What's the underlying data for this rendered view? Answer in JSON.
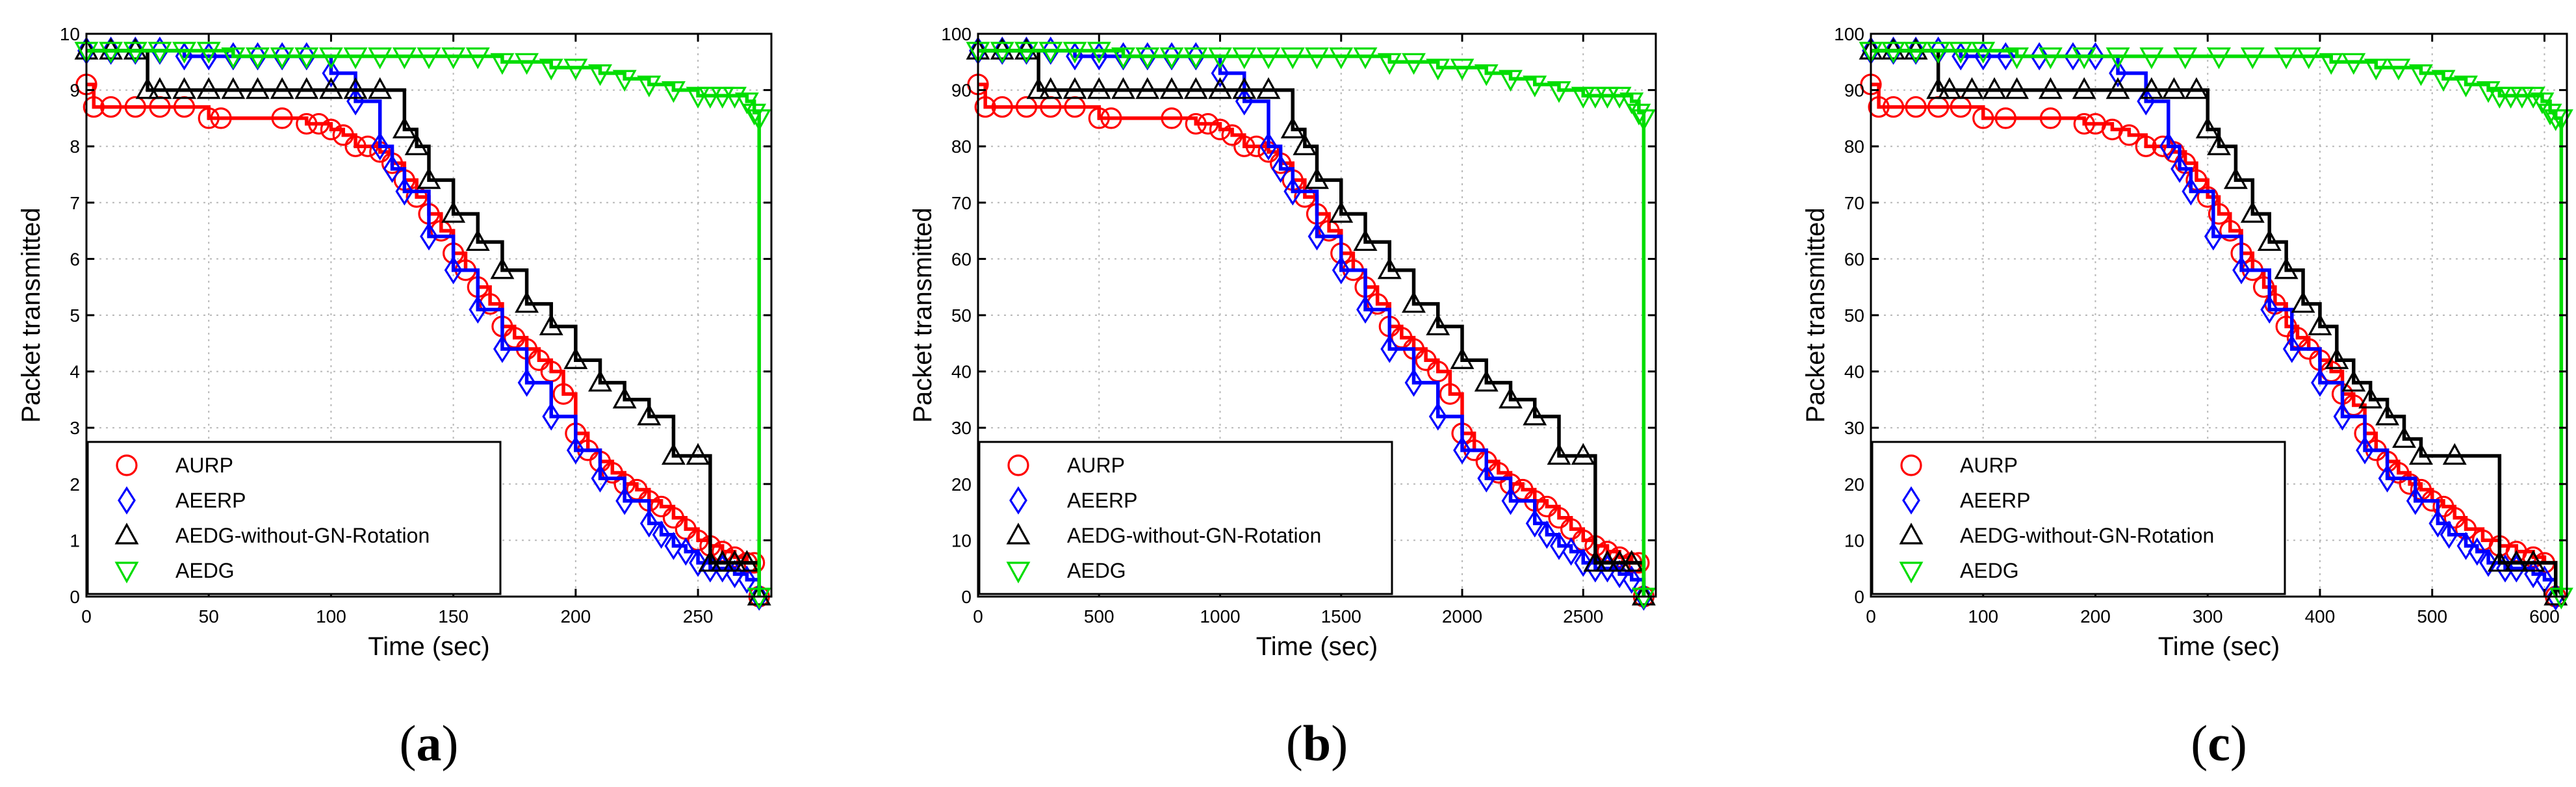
{
  "figure": {
    "panels": [
      "a",
      "b",
      "c"
    ]
  },
  "colors": {
    "AURP": "#ff0000",
    "AEERP": "#0000ff",
    "AEDG-without-GN-Rotation": "#000000",
    "AEDG": "#00dd00",
    "grid": "#b8b8b8",
    "axis": "#000000"
  },
  "chart_data": [
    {
      "type": "line",
      "panel_label": "a",
      "xlabel": "Time (sec)",
      "ylabel": "Packet transmitted",
      "xlim": [
        0,
        280
      ],
      "ylim": [
        0,
        10
      ],
      "xticks": [
        0,
        50,
        100,
        150,
        200,
        250
      ],
      "yticks": [
        0,
        1,
        2,
        3,
        4,
        5,
        6,
        7,
        8,
        9,
        10
      ],
      "legend_position": "bottom-left",
      "series": [
        {
          "name": "AURP",
          "marker": "circle",
          "x": [
            0,
            3,
            10,
            20,
            30,
            40,
            50,
            55,
            80,
            90,
            95,
            100,
            105,
            110,
            115,
            120,
            125,
            130,
            135,
            140,
            145,
            150,
            155,
            160,
            165,
            170,
            175,
            180,
            185,
            190,
            195,
            200,
            205,
            210,
            215,
            220,
            225,
            230,
            235,
            240,
            245,
            250,
            255,
            260,
            265,
            270,
            273,
            275
          ],
          "y": [
            9.1,
            8.7,
            8.7,
            8.7,
            8.7,
            8.7,
            8.5,
            8.5,
            8.5,
            8.4,
            8.4,
            8.3,
            8.2,
            8.0,
            8.0,
            7.9,
            7.7,
            7.4,
            7.1,
            6.8,
            6.5,
            6.1,
            5.8,
            5.5,
            5.2,
            4.8,
            4.6,
            4.4,
            4.2,
            4.0,
            3.6,
            2.9,
            2.6,
            2.4,
            2.2,
            2.0,
            1.9,
            1.7,
            1.6,
            1.4,
            1.2,
            1.0,
            0.9,
            0.8,
            0.7,
            0.6,
            0.6,
            0.0
          ]
        },
        {
          "name": "AEERP",
          "marker": "diamond",
          "x": [
            0,
            10,
            20,
            30,
            40,
            50,
            60,
            70,
            80,
            90,
            100,
            110,
            120,
            125,
            130,
            140,
            150,
            160,
            170,
            180,
            190,
            200,
            210,
            220,
            230,
            235,
            240,
            245,
            250,
            255,
            260,
            265,
            270,
            275
          ],
          "y": [
            9.7,
            9.7,
            9.7,
            9.7,
            9.6,
            9.6,
            9.6,
            9.6,
            9.6,
            9.6,
            9.3,
            8.8,
            8.0,
            7.6,
            7.2,
            6.4,
            5.8,
            5.1,
            4.4,
            3.8,
            3.2,
            2.6,
            2.1,
            1.7,
            1.3,
            1.1,
            0.9,
            0.8,
            0.6,
            0.5,
            0.5,
            0.4,
            0.3,
            0.0
          ]
        },
        {
          "name": "AEDG-without-GN-Rotation",
          "marker": "triangle-up",
          "x": [
            0,
            10,
            20,
            25,
            30,
            40,
            50,
            60,
            70,
            80,
            90,
            100,
            110,
            120,
            130,
            135,
            140,
            150,
            160,
            170,
            180,
            190,
            200,
            210,
            220,
            230,
            240,
            250,
            255,
            260,
            265,
            270,
            275
          ],
          "y": [
            9.7,
            9.7,
            9.7,
            9.0,
            9.0,
            9.0,
            9.0,
            9.0,
            9.0,
            9.0,
            9.0,
            9.0,
            9.0,
            9.0,
            8.3,
            8.0,
            7.4,
            6.8,
            6.3,
            5.8,
            5.2,
            4.8,
            4.2,
            3.8,
            3.5,
            3.2,
            2.5,
            2.5,
            0.6,
            0.6,
            0.6,
            0.6,
            0.0
          ]
        },
        {
          "name": "AEDG",
          "marker": "triangle-down",
          "x": [
            0,
            10,
            20,
            30,
            40,
            50,
            60,
            70,
            80,
            90,
            100,
            110,
            120,
            130,
            140,
            150,
            160,
            170,
            180,
            190,
            200,
            210,
            220,
            230,
            240,
            250,
            255,
            260,
            265,
            270,
            273,
            275,
            275
          ],
          "y": [
            9.7,
            9.7,
            9.7,
            9.7,
            9.7,
            9.7,
            9.6,
            9.6,
            9.6,
            9.6,
            9.6,
            9.6,
            9.6,
            9.6,
            9.6,
            9.6,
            9.6,
            9.5,
            9.5,
            9.4,
            9.4,
            9.3,
            9.2,
            9.1,
            9.0,
            8.9,
            8.9,
            8.9,
            8.9,
            8.8,
            8.6,
            8.5,
            0.0
          ]
        }
      ]
    },
    {
      "type": "line",
      "panel_label": "b",
      "xlabel": "Time (sec)",
      "ylabel": "Packet transmitted",
      "xlim": [
        0,
        2800
      ],
      "ylim": [
        0,
        100
      ],
      "xticks": [
        0,
        500,
        1000,
        1500,
        2000,
        2500
      ],
      "yticks": [
        0,
        10,
        20,
        30,
        40,
        50,
        60,
        70,
        80,
        90,
        100
      ],
      "legend_position": "bottom-left",
      "series": [
        {
          "name": "AURP",
          "marker": "circle",
          "x": [
            0,
            30,
            100,
            200,
            300,
            400,
            500,
            550,
            800,
            900,
            950,
            1000,
            1050,
            1100,
            1150,
            1200,
            1250,
            1300,
            1350,
            1400,
            1450,
            1500,
            1550,
            1600,
            1650,
            1700,
            1750,
            1800,
            1850,
            1900,
            1950,
            2000,
            2050,
            2100,
            2150,
            2200,
            2250,
            2300,
            2350,
            2400,
            2450,
            2500,
            2550,
            2600,
            2650,
            2700,
            2730,
            2750
          ],
          "y": [
            91,
            87,
            87,
            87,
            87,
            87,
            85,
            85,
            85,
            84,
            84,
            83,
            82,
            80,
            80,
            79,
            77,
            74,
            71,
            68,
            65,
            61,
            58,
            55,
            52,
            48,
            46,
            44,
            42,
            40,
            36,
            29,
            26,
            24,
            22,
            20,
            19,
            17,
            16,
            14,
            12,
            10,
            9,
            8,
            7,
            6,
            6,
            0
          ]
        },
        {
          "name": "AEERP",
          "marker": "diamond",
          "x": [
            0,
            100,
            200,
            300,
            400,
            500,
            600,
            700,
            800,
            900,
            1000,
            1100,
            1200,
            1250,
            1300,
            1400,
            1500,
            1600,
            1700,
            1800,
            1900,
            2000,
            2100,
            2200,
            2300,
            2350,
            2400,
            2450,
            2500,
            2550,
            2600,
            2650,
            2700,
            2750
          ],
          "y": [
            97,
            97,
            97,
            97,
            96,
            96,
            96,
            96,
            96,
            96,
            93,
            88,
            80,
            76,
            72,
            64,
            58,
            51,
            44,
            38,
            32,
            26,
            21,
            17,
            13,
            11,
            9,
            8,
            6,
            5,
            5,
            4,
            3,
            0
          ]
        },
        {
          "name": "AEDG-without-GN-Rotation",
          "marker": "triangle-up",
          "x": [
            0,
            100,
            200,
            250,
            300,
            400,
            500,
            600,
            700,
            800,
            900,
            1000,
            1100,
            1200,
            1300,
            1350,
            1400,
            1500,
            1600,
            1700,
            1800,
            1900,
            2000,
            2100,
            2200,
            2300,
            2400,
            2500,
            2550,
            2600,
            2650,
            2700,
            2750
          ],
          "y": [
            97,
            97,
            97,
            90,
            90,
            90,
            90,
            90,
            90,
            90,
            90,
            90,
            90,
            90,
            83,
            80,
            74,
            68,
            63,
            58,
            52,
            48,
            42,
            38,
            35,
            32,
            25,
            25,
            6,
            6,
            6,
            6,
            0
          ]
        },
        {
          "name": "AEDG",
          "marker": "triangle-down",
          "x": [
            0,
            100,
            200,
            300,
            400,
            500,
            600,
            700,
            800,
            900,
            1000,
            1100,
            1200,
            1300,
            1400,
            1500,
            1600,
            1700,
            1800,
            1900,
            2000,
            2100,
            2200,
            2300,
            2400,
            2500,
            2550,
            2600,
            2650,
            2700,
            2730,
            2750,
            2750
          ],
          "y": [
            97,
            97,
            97,
            97,
            97,
            97,
            96,
            96,
            96,
            96,
            96,
            96,
            96,
            96,
            96,
            96,
            96,
            95,
            95,
            94,
            94,
            93,
            92,
            91,
            90,
            89,
            89,
            89,
            89,
            88,
            86,
            85,
            0
          ]
        }
      ]
    },
    {
      "type": "line",
      "panel_label": "c",
      "xlabel": "Time (sec)",
      "ylabel": "Packet transmitted",
      "xlim": [
        0,
        620
      ],
      "ylim": [
        0,
        100
      ],
      "xticks": [
        0,
        100,
        200,
        300,
        400,
        500,
        600
      ],
      "yticks": [
        0,
        10,
        20,
        30,
        40,
        50,
        60,
        70,
        80,
        90,
        100
      ],
      "legend_position": "bottom-left",
      "series": [
        {
          "name": "AURP",
          "marker": "circle",
          "x": [
            0,
            7,
            20,
            40,
            60,
            80,
            100,
            120,
            160,
            190,
            200,
            215,
            230,
            245,
            260,
            270,
            280,
            290,
            300,
            310,
            320,
            330,
            340,
            350,
            360,
            370,
            380,
            390,
            400,
            410,
            420,
            430,
            440,
            450,
            460,
            470,
            480,
            490,
            500,
            510,
            520,
            530,
            545,
            560,
            575,
            590,
            600,
            610
          ],
          "y": [
            91,
            87,
            87,
            87,
            87,
            87,
            85,
            85,
            85,
            84,
            84,
            83,
            82,
            80,
            80,
            79,
            77,
            74,
            71,
            68,
            65,
            61,
            58,
            55,
            52,
            48,
            46,
            44,
            42,
            40,
            36,
            34,
            29,
            26,
            24,
            22,
            20,
            19,
            17,
            16,
            14,
            12,
            10,
            9,
            8,
            7,
            6,
            0
          ]
        },
        {
          "name": "AEERP",
          "marker": "diamond",
          "x": [
            0,
            20,
            40,
            60,
            80,
            100,
            120,
            150,
            180,
            200,
            220,
            245,
            265,
            275,
            285,
            305,
            330,
            355,
            375,
            400,
            420,
            440,
            460,
            485,
            505,
            515,
            530,
            540,
            550,
            565,
            575,
            590,
            600,
            610
          ],
          "y": [
            97,
            97,
            97,
            97,
            96,
            96,
            96,
            96,
            96,
            96,
            93,
            88,
            80,
            76,
            72,
            64,
            58,
            51,
            44,
            38,
            32,
            26,
            21,
            17,
            13,
            11,
            9,
            8,
            6,
            5,
            5,
            4,
            3,
            0
          ]
        },
        {
          "name": "AEDG-without-GN-Rotation",
          "marker": "triangle-up",
          "x": [
            0,
            20,
            40,
            60,
            70,
            90,
            110,
            130,
            160,
            190,
            220,
            250,
            270,
            290,
            300,
            310,
            325,
            340,
            355,
            370,
            385,
            400,
            415,
            430,
            445,
            460,
            475,
            490,
            520,
            560,
            575,
            590,
            610
          ],
          "y": [
            97,
            97,
            97,
            90,
            90,
            90,
            90,
            90,
            90,
            90,
            90,
            90,
            90,
            90,
            83,
            80,
            74,
            68,
            63,
            58,
            52,
            48,
            42,
            38,
            35,
            32,
            28,
            25,
            25,
            6,
            6,
            6,
            0
          ]
        },
        {
          "name": "AEDG",
          "marker": "triangle-down",
          "x": [
            0,
            20,
            40,
            60,
            80,
            100,
            130,
            160,
            190,
            220,
            250,
            280,
            310,
            340,
            370,
            390,
            410,
            430,
            450,
            470,
            490,
            510,
            530,
            550,
            560,
            570,
            580,
            590,
            598,
            605,
            610,
            615,
            615
          ],
          "y": [
            97,
            97,
            97,
            97,
            97,
            97,
            96,
            96,
            96,
            96,
            96,
            96,
            96,
            96,
            96,
            96,
            95,
            95,
            94,
            94,
            93,
            92,
            91,
            90,
            89,
            89,
            89,
            89,
            88,
            86,
            85,
            85,
            0
          ]
        }
      ]
    }
  ]
}
